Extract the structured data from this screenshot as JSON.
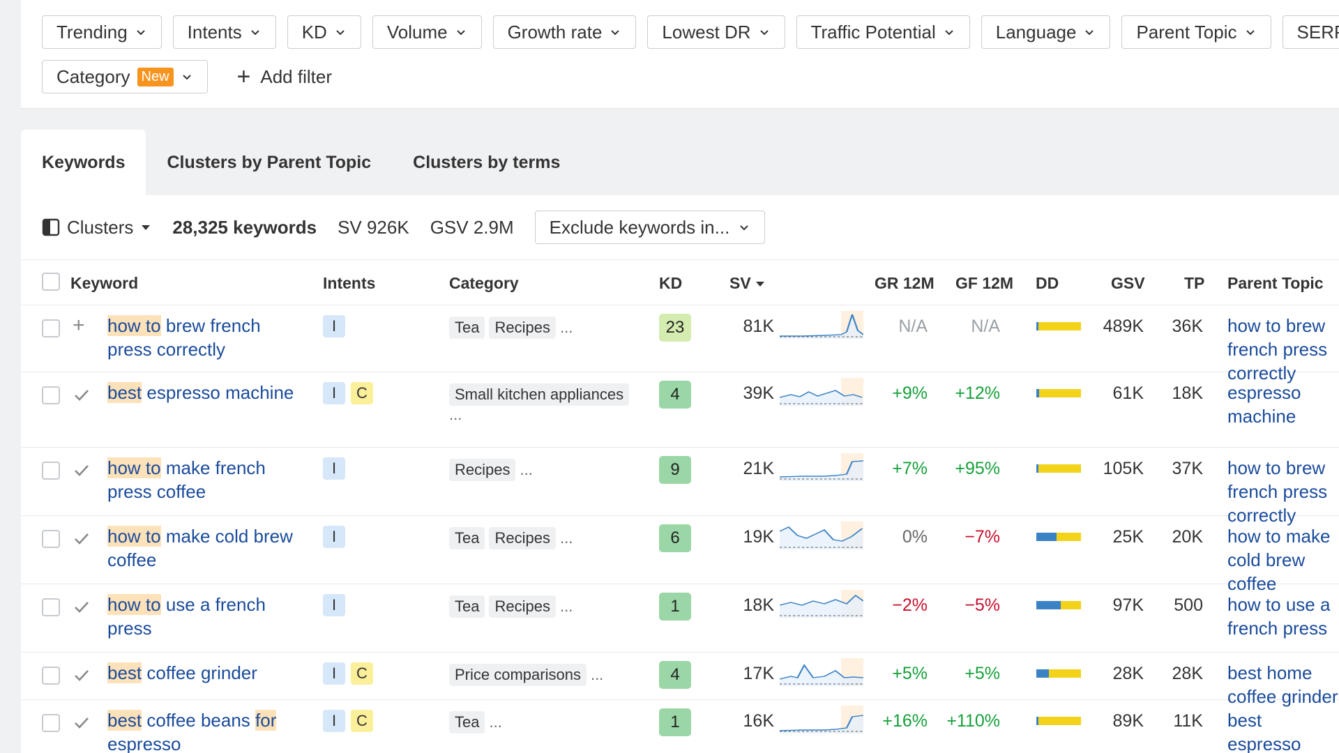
{
  "filters": {
    "row1": [
      "Trending",
      "Intents",
      "KD",
      "Volume",
      "Growth rate",
      "Lowest DR",
      "Traffic Potential",
      "Language",
      "Parent Topic",
      "SERP"
    ],
    "category_label": "Category",
    "new_badge": "New",
    "add_filter": "Add filter"
  },
  "tabs": [
    "Keywords",
    "Clusters by Parent Topic",
    "Clusters by terms"
  ],
  "toolbar": {
    "clusters": "Clusters",
    "keywords_count": "28,325 keywords",
    "sv": "SV 926K",
    "gsv": "GSV 2.9M",
    "exclude": "Exclude keywords in..."
  },
  "columns": {
    "keyword": "Keyword",
    "intents": "Intents",
    "category": "Category",
    "kd": "KD",
    "sv": "SV",
    "gr": "GR 12M",
    "gf": "GF 12M",
    "dd": "DD",
    "gsv": "GSV",
    "tp": "TP",
    "parent": "Parent Topic"
  },
  "rows": [
    {
      "kw_hl": "how to",
      "kw_rest": " brew french press correctly",
      "intents": [
        "I"
      ],
      "cats": [
        "Tea",
        "Recipes"
      ],
      "cat_dots": "...",
      "kd": "23",
      "kd_color": "#d4ecb0",
      "sv": "81K",
      "gr": "N/A",
      "gf": "N/A",
      "gr_type": "na",
      "gf_type": "na",
      "dd": [
        0.04,
        0.96
      ],
      "gsv": "489K",
      "tp": "36K",
      "parent": "how to brew french press correctly",
      "added": false,
      "spark": "peak"
    },
    {
      "kw_hl": "best",
      "kw_rest": " espresso machine",
      "intents": [
        "I",
        "C"
      ],
      "cats": [
        "Small kitchen appliances"
      ],
      "cat_dots": "...",
      "kd": "4",
      "kd_color": "#9bd7a6",
      "sv": "39K",
      "gr": "+9%",
      "gf": "+12%",
      "gr_type": "pos",
      "gf_type": "pos",
      "dd": [
        0.06,
        0.94
      ],
      "gsv": "61K",
      "tp": "18K",
      "parent": "espresso machine",
      "added": true,
      "spark": "wavy"
    },
    {
      "kw_hl": "how to",
      "kw_rest": " make french press coffee",
      "intents": [
        "I"
      ],
      "cats": [
        "Recipes"
      ],
      "cat_dots": "...",
      "kd": "9",
      "kd_color": "#9bd7a6",
      "sv": "21K",
      "gr": "+7%",
      "gf": "+95%",
      "gr_type": "pos",
      "gf_type": "pos",
      "dd": [
        0.04,
        0.96
      ],
      "gsv": "105K",
      "tp": "37K",
      "parent": "how to brew french press correctly",
      "added": true,
      "spark": "step"
    },
    {
      "kw_hl": "how to",
      "kw_rest": " make cold brew coffee",
      "intents": [
        "I"
      ],
      "cats": [
        "Tea",
        "Recipes"
      ],
      "cat_dots": "...",
      "kd": "6",
      "kd_color": "#9bd7a6",
      "sv": "19K",
      "gr": "0%",
      "gf": "−7%",
      "gr_type": "neu",
      "gf_type": "neg",
      "dd": [
        0.45,
        0.55
      ],
      "gsv": "25K",
      "tp": "20K",
      "parent": "how to make cold brew coffee",
      "added": true,
      "spark": "seasonal"
    },
    {
      "kw_hl": "how to",
      "kw_rest": " use a french press",
      "intents": [
        "I"
      ],
      "cats": [
        "Tea",
        "Recipes"
      ],
      "cat_dots": "...",
      "kd": "1",
      "kd_color": "#9bd7a6",
      "sv": "18K",
      "gr": "−2%",
      "gf": "−5%",
      "gr_type": "neg",
      "gf_type": "neg",
      "dd": [
        0.55,
        0.45
      ],
      "gsv": "97K",
      "tp": "500",
      "parent": "how to use a french press",
      "added": true,
      "spark": "flat"
    },
    {
      "kw_hl": "best",
      "kw_rest": " coffee grinder",
      "intents": [
        "I",
        "C"
      ],
      "cats": [
        "Price comparisons"
      ],
      "cat_dots": "...",
      "kd": "4",
      "kd_color": "#9bd7a6",
      "sv": "17K",
      "gr": "+5%",
      "gf": "+5%",
      "gr_type": "pos",
      "gf_type": "pos",
      "dd": [
        0.28,
        0.72
      ],
      "gsv": "28K",
      "tp": "28K",
      "parent": "best home coffee grinder",
      "added": true,
      "spark": "wavy2"
    },
    {
      "kw_hl": "best",
      "kw_rest": " coffee beans ",
      "kw_hl2": "for",
      "kw_rest2": " espresso",
      "intents": [
        "I",
        "C"
      ],
      "cats": [
        "Tea"
      ],
      "cat_dots": "...",
      "kd": "1",
      "kd_color": "#9bd7a6",
      "sv": "16K",
      "gr": "+16%",
      "gf": "+110%",
      "gr_type": "pos",
      "gf_type": "pos",
      "dd": [
        0.04,
        0.96
      ],
      "gsv": "89K",
      "tp": "11K",
      "parent": "best espresso beans",
      "added": true,
      "spark": "step2"
    }
  ]
}
